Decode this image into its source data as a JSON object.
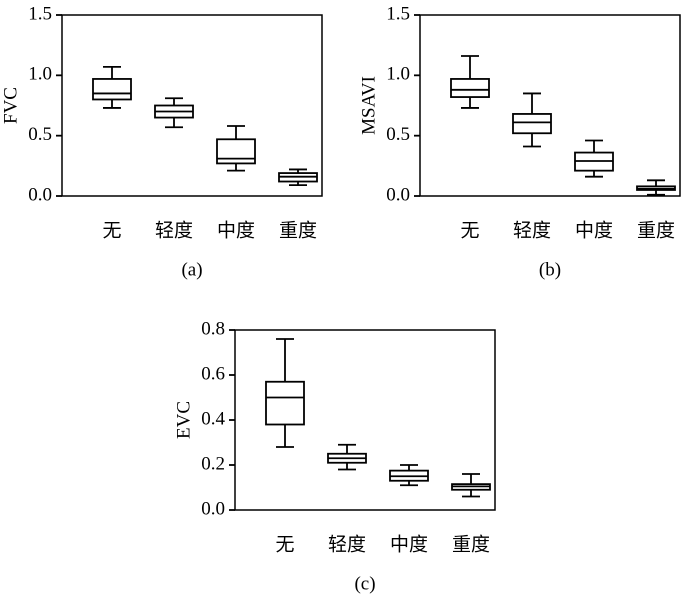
{
  "chart_data": [
    {
      "type": "box",
      "ylabel": "FVC",
      "caption": "(a)",
      "categories": [
        "无",
        "轻度",
        "中度",
        "重度"
      ],
      "boxes": [
        {
          "min": 0.73,
          "q1": 0.8,
          "median": 0.85,
          "q3": 0.97,
          "max": 1.07
        },
        {
          "min": 0.57,
          "q1": 0.65,
          "median": 0.7,
          "q3": 0.75,
          "max": 0.81
        },
        {
          "min": 0.21,
          "q1": 0.27,
          "median": 0.31,
          "q3": 0.47,
          "max": 0.58
        },
        {
          "min": 0.09,
          "q1": 0.12,
          "median": 0.16,
          "q3": 0.19,
          "max": 0.22
        }
      ],
      "ylim": [
        0,
        1.5
      ],
      "yticks": [
        {
          "value": 0,
          "label": "0.0"
        },
        0.5,
        {
          "value": 1,
          "label": "1.0"
        },
        1.5
      ]
    },
    {
      "type": "box",
      "ylabel": "MSAVI",
      "caption": "(b)",
      "categories": [
        "无",
        "轻度",
        "中度",
        "重度"
      ],
      "boxes": [
        {
          "min": 0.73,
          "q1": 0.82,
          "median": 0.88,
          "q3": 0.97,
          "max": 1.16
        },
        {
          "min": 0.41,
          "q1": 0.52,
          "median": 0.61,
          "q3": 0.68,
          "max": 0.85
        },
        {
          "min": 0.16,
          "q1": 0.21,
          "median": 0.29,
          "q3": 0.36,
          "max": 0.46
        },
        {
          "min": 0.01,
          "q1": 0.05,
          "median": 0.06,
          "q3": 0.08,
          "max": 0.13
        }
      ],
      "ylim": [
        0,
        1.5
      ],
      "yticks": [
        {
          "value": 0,
          "label": "0.0"
        },
        0.5,
        {
          "value": 1,
          "label": "1.0"
        },
        1.5
      ]
    },
    {
      "type": "box",
      "ylabel": "EVC",
      "caption": "(c)",
      "categories": [
        "无",
        "轻度",
        "中度",
        "重度"
      ],
      "boxes": [
        {
          "min": 0.28,
          "q1": 0.38,
          "median": 0.5,
          "q3": 0.57,
          "max": 0.76
        },
        {
          "min": 0.18,
          "q1": 0.21,
          "median": 0.23,
          "q3": 0.25,
          "max": 0.29
        },
        {
          "min": 0.11,
          "q1": 0.13,
          "median": 0.15,
          "q3": 0.175,
          "max": 0.2
        },
        {
          "min": 0.06,
          "q1": 0.09,
          "median": 0.105,
          "q3": 0.115,
          "max": 0.16
        }
      ],
      "ylim": [
        0,
        0.8
      ],
      "yticks": [
        {
          "value": 0,
          "label": "0.0"
        },
        0.2,
        0.4,
        0.6,
        0.8
      ]
    }
  ]
}
